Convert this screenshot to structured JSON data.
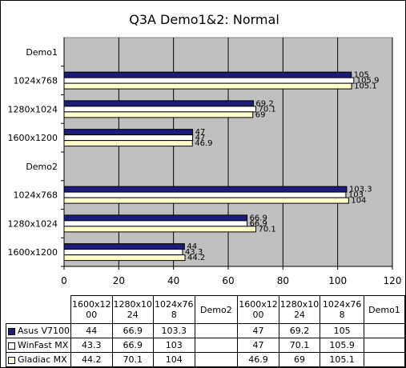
{
  "chart_data": {
    "type": "bar",
    "orientation": "horizontal",
    "title": "Q3A Demo1&2: Normal",
    "categories": [
      "1600x1200",
      "1280x1024",
      "1024x768",
      "Demo2",
      "1600x1200",
      "1280x1024",
      "1024x768",
      "Demo1"
    ],
    "table_headers": [
      "1600x12\n00",
      "1280x10\n24",
      "1024x76\n8",
      "Demo2",
      "1600x12\n00",
      "1280x10\n24",
      "1024x76\n8",
      "Demo1"
    ],
    "series": [
      {
        "name": "Asus V7100",
        "color": "#1c1c7a",
        "values": [
          44,
          66.9,
          103.3,
          null,
          47,
          69.2,
          105,
          null
        ]
      },
      {
        "name": "WinFast MX",
        "color": "#ffffff",
        "values": [
          43.3,
          66.9,
          103,
          null,
          47,
          70.1,
          105.9,
          null
        ]
      },
      {
        "name": "Gladiac MX",
        "color": "#ffffcc",
        "values": [
          44.2,
          70.1,
          104,
          null,
          46.9,
          69,
          105.1,
          null
        ]
      }
    ],
    "xlim": [
      0,
      120
    ],
    "xticks": [
      0,
      20,
      40,
      60,
      80,
      100,
      120
    ],
    "xlabel": "",
    "ylabel": "",
    "grid": true,
    "plot_background": "#c0c0c0",
    "legend": "data-table"
  }
}
